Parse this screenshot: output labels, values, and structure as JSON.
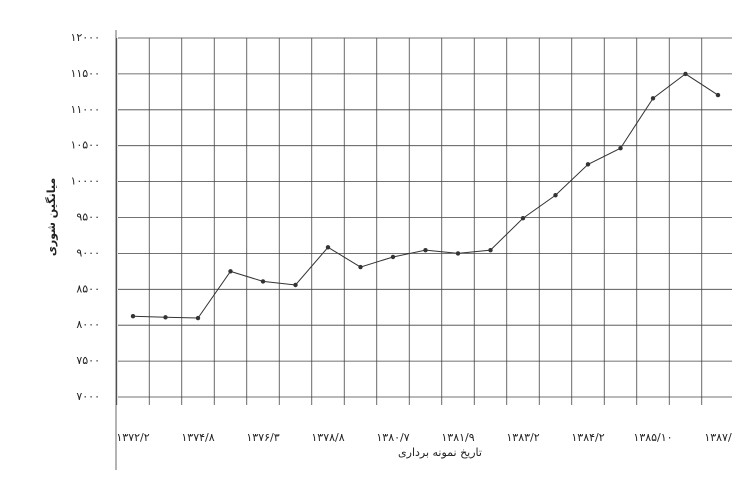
{
  "chart_data": {
    "type": "line",
    "x_label": "تاریخ نمونه برداری",
    "y_label": "میانگین شوری",
    "categories": [
      "۱۳۷۲/۲",
      null,
      "۱۳۷۴/۸",
      null,
      "۱۳۷۶/۳",
      null,
      "۱۳۷۸/۸",
      null,
      "۱۳۸۰/۷",
      null,
      "۱۳۸۱/۹",
      null,
      "۱۳۸۳/۲",
      null,
      "۱۳۸۴/۲",
      null,
      "۱۳۸۵/۱۰",
      null,
      "۱۳۸۷/"
    ],
    "series": [
      {
        "color": "#333333",
        "values": [
          8125,
          8110,
          8100,
          8750,
          8610,
          8560,
          9085,
          8810,
          8950,
          9045,
          9000,
          9045,
          9490,
          9810,
          10240,
          10465,
          11160,
          11500,
          11205
        ]
      }
    ],
    "ylim": [
      7000,
      12000
    ],
    "yticks": [
      {
        "value": 7000,
        "label": "۷۰۰۰"
      },
      {
        "value": 7500,
        "label": "۷۵۰۰"
      },
      {
        "value": 8000,
        "label": "۸۰۰۰"
      },
      {
        "value": 8500,
        "label": "۸۵۰۰"
      },
      {
        "value": 9000,
        "label": "۹۰۰۰"
      },
      {
        "value": 9500,
        "label": "۹۵۰۰"
      },
      {
        "value": 10000,
        "label": "۱۰۰۰۰"
      },
      {
        "value": 10500,
        "label": "۱۰۵۰۰"
      },
      {
        "value": 11000,
        "label": "۱۱۰۰۰"
      },
      {
        "value": 11500,
        "label": "۱۱۵۰۰"
      },
      {
        "value": 12000,
        "label": "۱۲۰۰۰"
      }
    ],
    "grid": true
  }
}
